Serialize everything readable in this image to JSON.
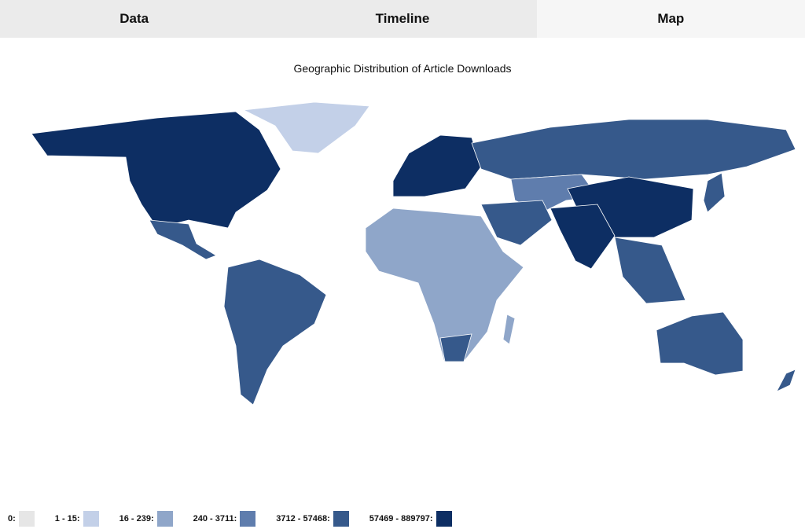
{
  "tabs": [
    "Data",
    "Timeline",
    "Map"
  ],
  "active_tab": 2,
  "title": "Geographic Distribution of Article Downloads",
  "legend": [
    {
      "label": "0:",
      "color": "#e6e6e6"
    },
    {
      "label": "1 - 15:",
      "color": "#c3d0e8"
    },
    {
      "label": "16 - 239:",
      "color": "#8fa6c9"
    },
    {
      "label": "240 - 3711:",
      "color": "#5f7dad"
    },
    {
      "label": "3712 - 57468:",
      "color": "#36598b"
    },
    {
      "label": "57469 - 889797:",
      "color": "#0d2e63"
    }
  ]
}
